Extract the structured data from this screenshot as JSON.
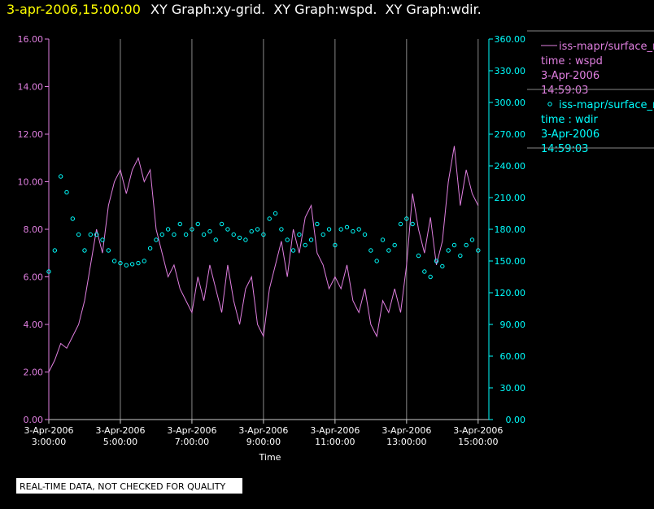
{
  "chart_data": {
    "type": "line-scatter",
    "title": "3-apr-2006,15:00:00",
    "subtitle": "XY Graph:xy-grid.  XY Graph:wspd.  XY Graph:wdir.",
    "xlabel": "Time",
    "footnote": "REAL-TIME DATA, NOT CHECKED FOR QUALITY",
    "xlim": [
      "03:00",
      "15:18"
    ],
    "xticks": [
      {
        "value": "03:00",
        "label": "3-Apr-2006 3:00:00"
      },
      {
        "value": "05:00",
        "label": "3-Apr-2006 5:00:00"
      },
      {
        "value": "07:00",
        "label": "3-Apr-2006 7:00:00"
      },
      {
        "value": "09:00",
        "label": "3-Apr-2006 9:00:00"
      },
      {
        "value": "11:00",
        "label": "3-Apr-2006 11:00:00"
      },
      {
        "value": "13:00",
        "label": "3-Apr-2006 13:00:00"
      },
      {
        "value": "15:00",
        "label": "3-Apr-2006 15:00:00"
      }
    ],
    "ylim": [
      0,
      16
    ],
    "yticks": [
      {
        "value": 0,
        "label": "0.00"
      },
      {
        "value": 2,
        "label": "2.00"
      },
      {
        "value": 4,
        "label": "4.00"
      },
      {
        "value": 6,
        "label": "6.00"
      },
      {
        "value": 8,
        "label": "8.00"
      },
      {
        "value": 10,
        "label": "10.00"
      },
      {
        "value": 12,
        "label": "12.00"
      },
      {
        "value": 14,
        "label": "14.00"
      },
      {
        "value": 16,
        "label": "16.00"
      }
    ],
    "y2lim": [
      0,
      360
    ],
    "y2ticks": [
      {
        "value": 0,
        "label": "0.00"
      },
      {
        "value": 30,
        "label": "30.00"
      },
      {
        "value": 60,
        "label": "60.00"
      },
      {
        "value": 90,
        "label": "90.00"
      },
      {
        "value": 120,
        "label": "120.00"
      },
      {
        "value": 150,
        "label": "150.00"
      },
      {
        "value": 180,
        "label": "180.00"
      },
      {
        "value": 210,
        "label": "210.00"
      },
      {
        "value": 240,
        "label": "240.00"
      },
      {
        "value": 270,
        "label": "270.00"
      },
      {
        "value": 300,
        "label": "300.00"
      },
      {
        "value": 330,
        "label": "330.00"
      },
      {
        "value": 360,
        "label": "360.00"
      }
    ],
    "grid": "x",
    "x": [
      "03:00",
      "03:10",
      "03:20",
      "03:30",
      "03:40",
      "03:50",
      "04:00",
      "04:10",
      "04:20",
      "04:30",
      "04:40",
      "04:50",
      "05:00",
      "05:10",
      "05:20",
      "05:30",
      "05:40",
      "05:50",
      "06:00",
      "06:10",
      "06:20",
      "06:30",
      "06:40",
      "06:50",
      "07:00",
      "07:10",
      "07:20",
      "07:30",
      "07:40",
      "07:50",
      "08:00",
      "08:10",
      "08:20",
      "08:30",
      "08:40",
      "08:50",
      "09:00",
      "09:10",
      "09:20",
      "09:30",
      "09:40",
      "09:50",
      "10:00",
      "10:10",
      "10:20",
      "10:30",
      "10:40",
      "10:50",
      "11:00",
      "11:10",
      "11:20",
      "11:30",
      "11:40",
      "11:50",
      "12:00",
      "12:10",
      "12:20",
      "12:30",
      "12:40",
      "12:50",
      "13:00",
      "13:10",
      "13:20",
      "13:30",
      "13:40",
      "13:50",
      "14:00",
      "14:10",
      "14:20",
      "14:30",
      "14:40",
      "14:50",
      "15:00"
    ],
    "series": [
      {
        "name": "iss-mapr/surface_m",
        "legend_lines": [
          "time : wspd",
          "3-Apr-2006",
          "14:59:03"
        ],
        "color": "#e07fe0",
        "mark": "line",
        "values": [
          2.0,
          2.5,
          3.2,
          3.0,
          3.5,
          4.0,
          5.0,
          6.5,
          8.0,
          7.0,
          9.0,
          10.0,
          10.5,
          9.5,
          10.5,
          11.0,
          10.0,
          10.5,
          8.0,
          7.0,
          6.0,
          6.5,
          5.5,
          5.0,
          4.5,
          6.0,
          5.0,
          6.5,
          5.5,
          4.5,
          6.5,
          5.0,
          4.0,
          5.5,
          6.0,
          4.0,
          3.5,
          5.5,
          6.5,
          7.5,
          6.0,
          8.0,
          7.0,
          8.5,
          9.0,
          7.0,
          6.5,
          5.5,
          6.0,
          5.5,
          6.5,
          5.0,
          4.5,
          5.5,
          4.0,
          3.5,
          5.0,
          4.5,
          5.5,
          4.5,
          6.5,
          9.5,
          8.0,
          7.0,
          8.5,
          6.5,
          7.5,
          10.0,
          11.5,
          9.0,
          10.5,
          9.5,
          9.0
        ]
      },
      {
        "name": "iss-mapr/surface_m",
        "legend_lines": [
          "time : wdir",
          "3-Apr-2006",
          "14:59:03"
        ],
        "color": "#00ffff",
        "mark": "circle",
        "axis": "y2",
        "values": [
          140,
          160,
          230,
          215,
          190,
          175,
          160,
          175,
          175,
          170,
          160,
          150,
          148,
          146,
          147,
          148,
          150,
          162,
          170,
          175,
          180,
          175,
          185,
          175,
          180,
          185,
          175,
          178,
          170,
          185,
          180,
          175,
          172,
          170,
          178,
          180,
          175,
          190,
          195,
          180,
          170,
          160,
          175,
          165,
          170,
          185,
          175,
          180,
          165,
          180,
          182,
          178,
          180,
          175,
          160,
          150,
          170,
          160,
          165,
          185,
          190,
          185,
          155,
          140,
          135,
          150,
          145,
          160,
          165,
          155,
          165,
          170,
          160
        ]
      }
    ]
  }
}
